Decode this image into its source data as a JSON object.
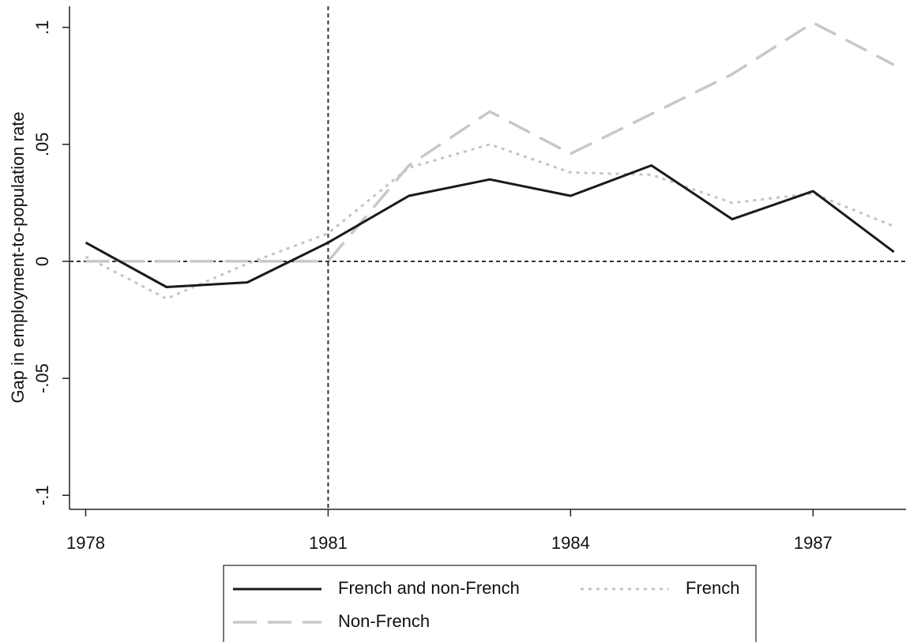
{
  "chart_data": {
    "type": "line",
    "y_label": "Gap in employment-to-population rate",
    "x": [
      1978,
      1979,
      1980,
      1981,
      1982,
      1983,
      1984,
      1985,
      1986,
      1987,
      1988
    ],
    "series": [
      {
        "name": "French and non-French",
        "color": "#1a1a1a",
        "dash": "solid",
        "values": [
          0.008,
          -0.011,
          -0.009,
          0.008,
          0.028,
          0.035,
          0.028,
          0.041,
          0.018,
          0.03,
          0.004
        ]
      },
      {
        "name": "French",
        "color": "#c4c4c4",
        "dash": "dot",
        "values": [
          0.002,
          -0.016,
          -0.001,
          0.012,
          0.04,
          0.05,
          0.038,
          0.037,
          0.025,
          0.029,
          0.015
        ]
      },
      {
        "name": "Non-French",
        "color": "#c8c8c8",
        "dash": "dash",
        "values": [
          0,
          0,
          0,
          0,
          0.041,
          0.064,
          0.046,
          0.063,
          0.08,
          0.102,
          0.084
        ]
      }
    ],
    "xlim": [
      1977.8,
      1988.15
    ],
    "xticks": [
      1978,
      1981,
      1984,
      1987
    ],
    "ylim": [
      -0.106,
      0.109
    ],
    "yticks": [
      {
        "value": -0.1,
        "label": "-.1"
      },
      {
        "value": -0.05,
        "label": "-.05"
      },
      {
        "value": 0,
        "label": "0"
      },
      {
        "value": 0.05,
        "label": ".05"
      },
      {
        "value": 0.1,
        "label": ".1"
      }
    ],
    "x_reference_line": 1981,
    "y_reference_line": 0
  }
}
